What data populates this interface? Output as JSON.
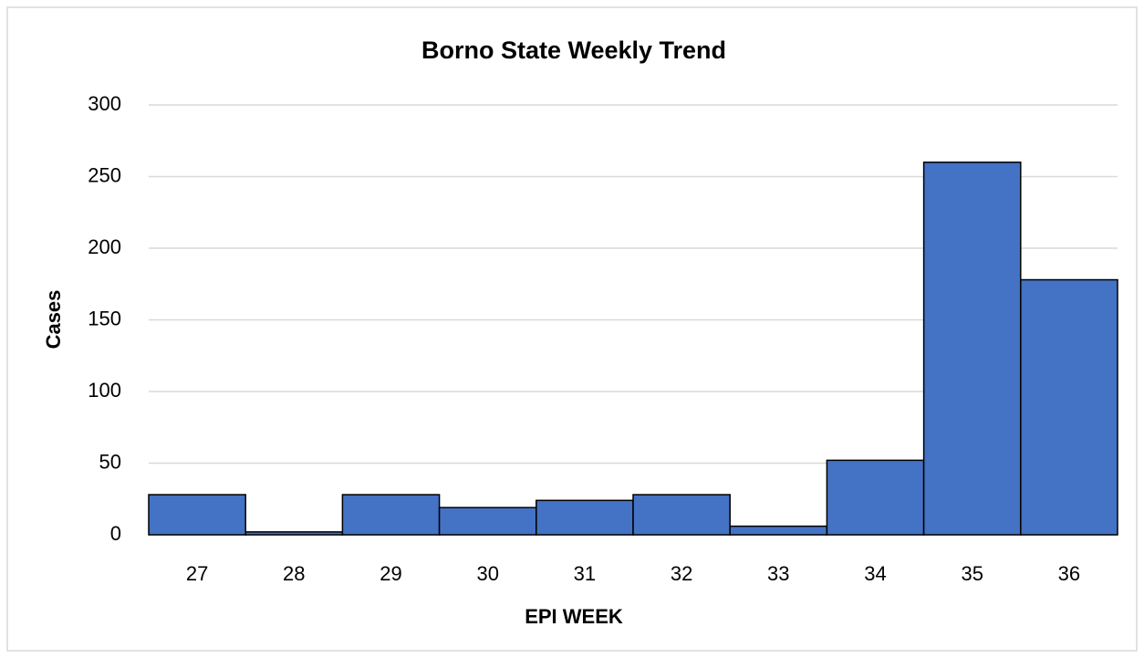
{
  "chart_data": {
    "type": "bar",
    "title": "Borno State Weekly Trend",
    "x_label": "EPI WEEK",
    "y_label": "Cases",
    "categories": [
      "27",
      "28",
      "29",
      "30",
      "31",
      "32",
      "33",
      "34",
      "35",
      "36"
    ],
    "values": [
      28,
      2,
      28,
      19,
      24,
      28,
      6,
      52,
      260,
      178
    ],
    "color": "#4472c4",
    "ylim": [
      0,
      300
    ],
    "yticks": [
      0,
      50,
      100,
      150,
      200,
      250,
      300
    ],
    "grid": true
  }
}
